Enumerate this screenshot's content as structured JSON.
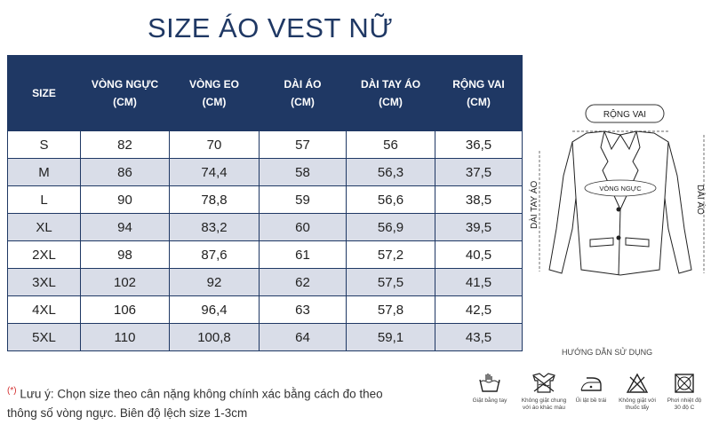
{
  "title": "SIZE ÁO VEST NỮ",
  "table": {
    "headers": [
      {
        "l1": "SIZE",
        "l2": ""
      },
      {
        "l1": "VÒNG NGỰC",
        "l2": "(CM)"
      },
      {
        "l1": "VÒNG EO",
        "l2": "(CM)"
      },
      {
        "l1": "DÀI ÁO",
        "l2": "(CM)"
      },
      {
        "l1": "DÀI TAY ÁO",
        "l2": "(CM)"
      },
      {
        "l1": "RỘNG VAI",
        "l2": "(CM)"
      }
    ],
    "rows": [
      [
        "S",
        "82",
        "70",
        "57",
        "56",
        "36,5"
      ],
      [
        "M",
        "86",
        "74,4",
        "58",
        "56,3",
        "37,5"
      ],
      [
        "L",
        "90",
        "78,8",
        "59",
        "56,6",
        "38,5"
      ],
      [
        "XL",
        "94",
        "83,2",
        "60",
        "56,9",
        "39,5"
      ],
      [
        "2XL",
        "98",
        "87,6",
        "61",
        "57,2",
        "40,5"
      ],
      [
        "3XL",
        "102",
        "92",
        "62",
        "57,5",
        "41,5"
      ],
      [
        "4XL",
        "106",
        "96,4",
        "63",
        "57,8",
        "42,5"
      ],
      [
        "5XL",
        "110",
        "100,8",
        "64",
        "59,1",
        "43,5"
      ]
    ]
  },
  "diagram": {
    "shoulder": "RỘNG VAI",
    "chest": "VÒNG NGỰC",
    "sleeve": "DÀI TAY ÁO",
    "length": "DÀI ÁO"
  },
  "note": {
    "marker": "(*)",
    "line1": "Lưu ý: Chọn size theo cân nặng không chính xác bằng cách đo theo",
    "line2": "thông số vòng ngực. Biên độ lệch size 1-3cm"
  },
  "usage_title": "HƯỚNG DẪN SỬ DỤNG",
  "care": [
    {
      "icon": "hand-wash-icon",
      "label1": "Giặt bằng tay",
      "label2": ""
    },
    {
      "icon": "wash-separately-icon",
      "label1": "Không giặt chung",
      "label2": "với áo khác màu"
    },
    {
      "icon": "iron-inside-out-icon",
      "label1": "Ủi lật bề trái",
      "label2": ""
    },
    {
      "icon": "no-bleach-icon",
      "label1": "Không giặt với",
      "label2": "thuốc tẩy"
    },
    {
      "icon": "dry-30c-icon",
      "label1": "Phơi nhiệt độ",
      "label2": "30 độ C"
    }
  ]
}
